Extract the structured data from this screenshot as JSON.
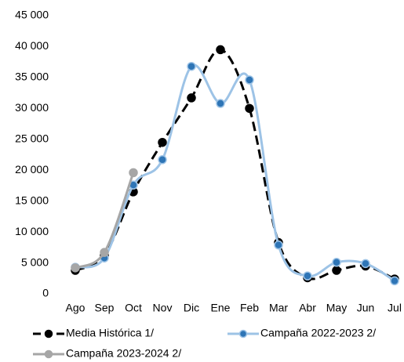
{
  "chart_data": {
    "type": "line",
    "categories": [
      "Ago",
      "Sep",
      "Oct",
      "Nov",
      "Dic",
      "Ene",
      "Feb",
      "Mar",
      "Abr",
      "May",
      "Jun",
      "Jul"
    ],
    "series": [
      {
        "name": "Media Histórica 1/",
        "color": "#000000",
        "marker_color": "#000000",
        "dashed": true,
        "values": [
          3800,
          6200,
          16500,
          24500,
          31700,
          39500,
          30000,
          8300,
          2600,
          3800,
          4500,
          2400
        ]
      },
      {
        "name": "Campaña 2022-2023 2/",
        "color": "#9dc3e6",
        "marker_color": "#2e75b6",
        "dashed": false,
        "values": [
          4300,
          5800,
          17600,
          21700,
          36800,
          30800,
          34600,
          7900,
          2900,
          5100,
          4900,
          2100
        ]
      },
      {
        "name": "Campaña 2023-2024 2/",
        "color": "#a6a6a6",
        "marker_color": "#a6a6a6",
        "dashed": false,
        "values": [
          4200,
          6700,
          19600,
          null,
          null,
          null,
          null,
          null,
          null,
          null,
          null,
          null
        ]
      }
    ],
    "ylim": [
      0,
      45000
    ],
    "yticks": [
      0,
      {
        "value": 5000,
        "label": "5 000"
      },
      {
        "value": 10000,
        "label": "10 000"
      },
      {
        "value": 15000,
        "label": "15 000"
      },
      {
        "value": 20000,
        "label": "20 000"
      },
      {
        "value": 25000,
        "label": "25 000"
      },
      {
        "value": 30000,
        "label": "30 000"
      },
      {
        "value": 35000,
        "label": "35 000"
      },
      {
        "value": 40000,
        "label": "40 000"
      },
      {
        "value": 45000,
        "label": "45 000"
      }
    ],
    "grid": false,
    "legend": "bottom"
  }
}
